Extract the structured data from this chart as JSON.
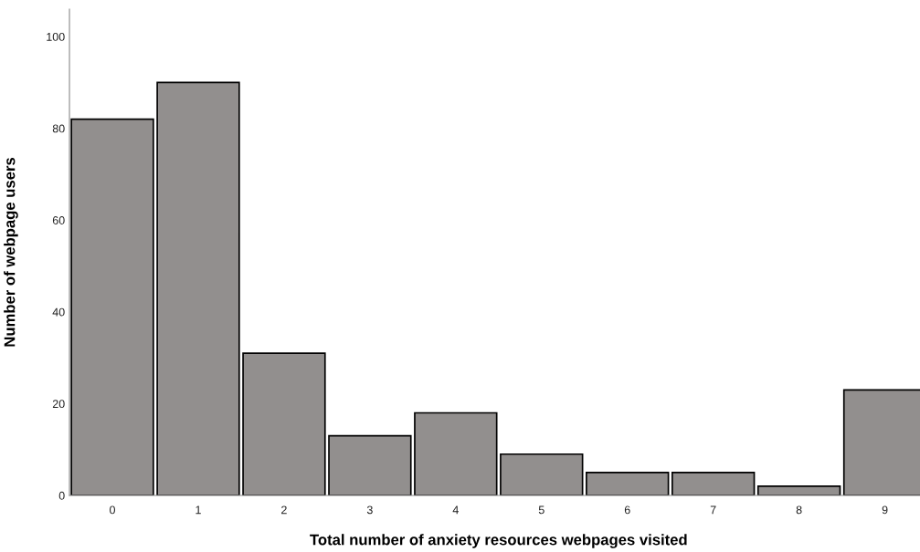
{
  "chart_data": {
    "type": "bar",
    "xlabel": "Total number of anxiety resources webpages visited",
    "ylabel": "Number of webpage users",
    "categories": [
      "0",
      "1",
      "2",
      "3",
      "4",
      "5",
      "6",
      "7",
      "8",
      "9"
    ],
    "values": [
      82,
      90,
      31,
      13,
      18,
      9,
      5,
      5,
      2,
      23
    ],
    "color": "#928f8e",
    "ylim": [
      0,
      106
    ],
    "yticks": [
      0,
      20,
      40,
      60,
      80,
      100
    ],
    "grid": false,
    "legend": false
  }
}
